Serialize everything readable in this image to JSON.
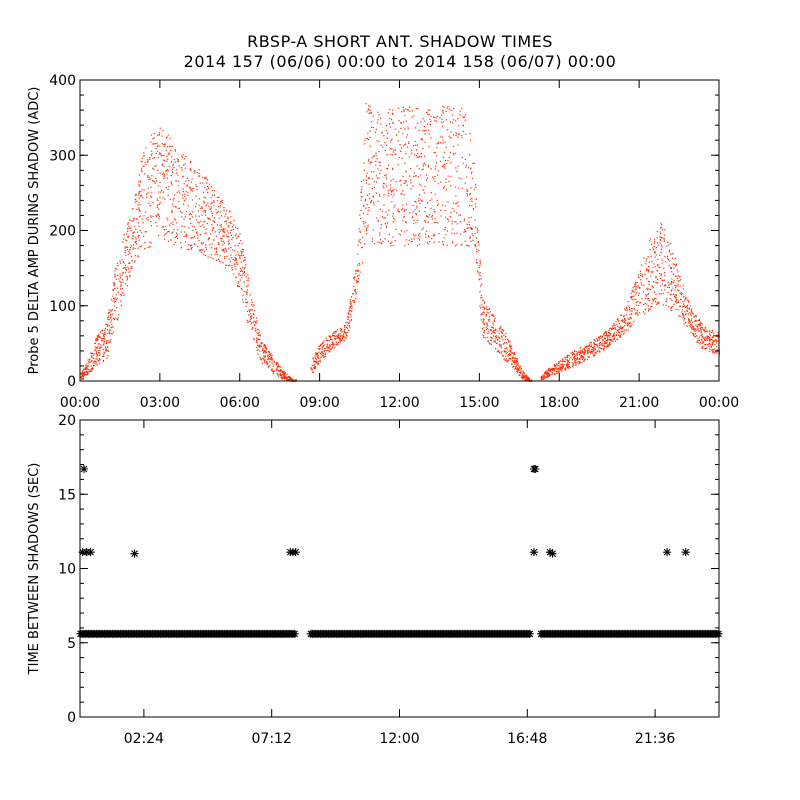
{
  "header": {
    "title": "RBSP-A SHORT ANT. SHADOW TIMES",
    "subtitle": "2014 157 (06/06) 00:00 to 2014 158 (06/07) 00:00"
  },
  "colors": {
    "top_series": "#ff2a00",
    "bottom_series": "#000000",
    "axis": "#000000"
  },
  "chart_data": [
    {
      "type": "scatter",
      "title": "",
      "xlabel": "",
      "ylabel": "Probe 5 DELTA AMP DURING SHADOW (ADC)",
      "xlim_hours": [
        0,
        24
      ],
      "ylim": [
        0,
        400
      ],
      "x_tick_labels": [
        "00:00",
        "03:00",
        "06:00",
        "09:00",
        "12:00",
        "15:00",
        "18:00",
        "21:00",
        "00:00"
      ],
      "x_ticks_hours": [
        0,
        3,
        6,
        9,
        12,
        15,
        18,
        21,
        24
      ],
      "y_ticks": [
        0,
        100,
        200,
        300,
        400
      ],
      "envelope": {
        "hours": [
          0.0,
          0.3,
          0.6,
          1.0,
          1.3,
          1.6,
          2.0,
          2.3,
          2.7,
          3.0,
          3.5,
          4.0,
          4.5,
          5.0,
          5.5,
          6.0,
          6.4,
          6.8,
          7.2,
          7.6,
          8.0,
          8.4,
          8.7,
          9.0,
          9.4,
          9.7,
          10.0,
          10.4,
          10.7,
          11.0,
          11.5,
          12.0,
          12.5,
          13.0,
          13.5,
          14.0,
          14.5,
          14.8,
          15.1,
          15.5,
          15.9,
          16.3,
          16.6,
          16.9,
          17.2,
          17.5,
          18.0,
          18.5,
          19.0,
          19.5,
          20.0,
          20.5,
          21.0,
          21.4,
          21.8,
          22.1,
          22.4,
          22.7,
          23.0,
          23.3,
          23.6,
          24.0
        ],
        "low": [
          0,
          10,
          20,
          30,
          70,
          110,
          150,
          175,
          180,
          185,
          180,
          175,
          170,
          160,
          150,
          120,
          60,
          25,
          10,
          3,
          0,
          0,
          10,
          25,
          40,
          50,
          55,
          120,
          180,
          180,
          180,
          180,
          180,
          180,
          180,
          180,
          180,
          180,
          60,
          45,
          30,
          15,
          3,
          0,
          0,
          5,
          12,
          20,
          28,
          38,
          50,
          65,
          85,
          95,
          100,
          95,
          90,
          75,
          60,
          45,
          40,
          35
        ],
        "high": [
          10,
          30,
          60,
          80,
          150,
          190,
          240,
          300,
          335,
          340,
          320,
          300,
          280,
          260,
          240,
          200,
          120,
          55,
          35,
          15,
          2,
          5,
          30,
          50,
          65,
          70,
          80,
          170,
          370,
          370,
          365,
          365,
          365,
          360,
          370,
          370,
          360,
          290,
          110,
          90,
          70,
          40,
          15,
          2,
          2,
          15,
          28,
          40,
          50,
          60,
          75,
          100,
          150,
          190,
          215,
          195,
          160,
          120,
          95,
          80,
          70,
          65
        ]
      },
      "gaps_hours": [
        [
          8.1,
          8.65
        ],
        [
          16.95,
          17.3
        ]
      ]
    },
    {
      "type": "scatter",
      "title": "",
      "xlabel": "",
      "ylabel": "TIME BETWEEN SHADOWS (SEC)",
      "xlim_hours": [
        0,
        24
      ],
      "ylim": [
        0,
        20
      ],
      "x_tick_labels": [
        "02:24",
        "07:12",
        "12:00",
        "16:48",
        "21:36"
      ],
      "x_ticks_hours": [
        2.4,
        7.2,
        12.0,
        16.8,
        21.6
      ],
      "y_ticks": [
        0,
        5,
        10,
        15,
        20
      ],
      "baseline_value": 5.6,
      "baseline_segments_hours": [
        [
          0.0,
          8.1
        ],
        [
          8.65,
          16.95
        ],
        [
          17.3,
          24.0
        ]
      ],
      "outliers": [
        {
          "x": 0.15,
          "y": 16.7
        },
        {
          "x": 0.1,
          "y": 11.1
        },
        {
          "x": 0.25,
          "y": 11.1
        },
        {
          "x": 0.4,
          "y": 11.1
        },
        {
          "x": 2.05,
          "y": 11.0
        },
        {
          "x": 7.9,
          "y": 11.1
        },
        {
          "x": 8.0,
          "y": 11.1
        },
        {
          "x": 8.1,
          "y": 11.1
        },
        {
          "x": 17.05,
          "y": 16.7
        },
        {
          "x": 17.1,
          "y": 16.7
        },
        {
          "x": 17.05,
          "y": 11.1
        },
        {
          "x": 17.65,
          "y": 11.1
        },
        {
          "x": 17.75,
          "y": 11.0
        },
        {
          "x": 22.05,
          "y": 11.1
        },
        {
          "x": 22.75,
          "y": 11.1
        }
      ]
    }
  ]
}
